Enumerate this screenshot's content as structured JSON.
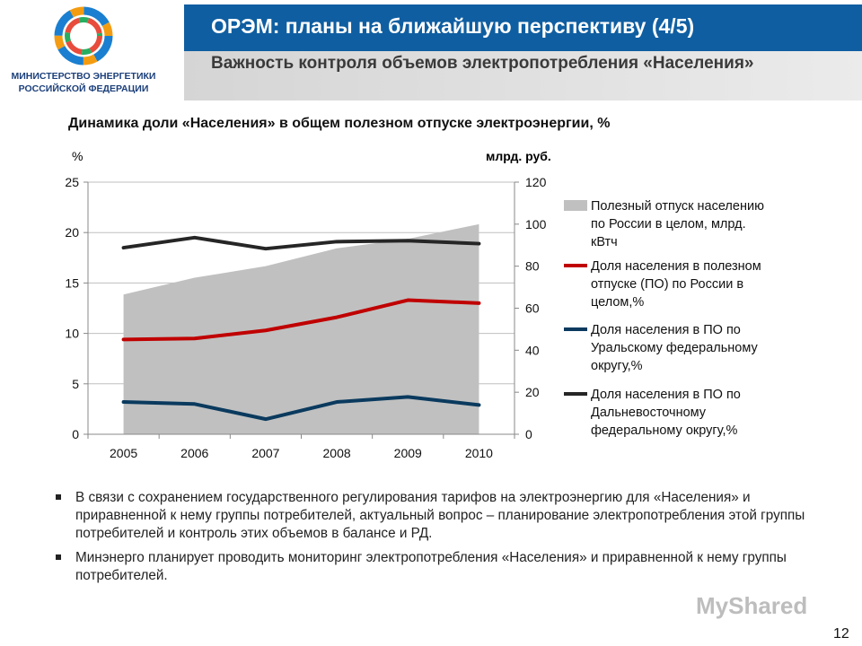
{
  "header": {
    "ministry_name_line1": "МИНИСТЕРСТВО ЭНЕРГЕТИКИ",
    "ministry_name_line2": "РОССИЙСКОЙ ФЕДЕРАЦИИ",
    "title": "ОРЭМ: планы на ближайшую перспективу (4/5)",
    "subtitle": "Важность контроля объемов электропотребления «Населения»",
    "colors": {
      "title_bg": "#0f5ea1",
      "subtitle_bg": "#dcdcdc"
    }
  },
  "chart_data": {
    "type": "line",
    "title": "Динамика доли «Населения» в общем полезном отпуске электроэнергии, %",
    "ylabel_left": "%",
    "ylabel_right": "млрд. руб.",
    "categories": [
      "2005",
      "2006",
      "2007",
      "2008",
      "2009",
      "2010"
    ],
    "ylim_left": [
      0,
      25
    ],
    "yticks_left": [
      "0",
      "5",
      "10",
      "15",
      "20",
      "25"
    ],
    "ylim_right": [
      0,
      120
    ],
    "yticks_right": [
      "0",
      "20",
      "40",
      "60",
      "80",
      "100",
      "120"
    ],
    "grid": true,
    "legend_position": "right",
    "area_series": {
      "name": "Полезный отпуск населению по России в целом, млрд. кВтч",
      "axis": "right",
      "color": "#c0c0c0",
      "values": [
        66.5,
        74.5,
        80,
        88.5,
        93,
        100
      ]
    },
    "series": [
      {
        "name": "Доля населения в полезном отпуске (ПО) по России в целом,%",
        "axis": "left",
        "color": "#c00000",
        "values": [
          9.4,
          9.5,
          10.3,
          11.6,
          13.3,
          13.0
        ]
      },
      {
        "name": "Доля населения в ПО по Уральскому федеральному округу,%",
        "axis": "left",
        "color": "#0a3a5e",
        "values": [
          3.2,
          3.0,
          1.5,
          3.2,
          3.7,
          2.9
        ]
      },
      {
        "name": "Доля населения в ПО по Дальневосточному федеральному округу,%",
        "axis": "left",
        "color": "#262626",
        "values": [
          18.5,
          19.5,
          18.4,
          19.1,
          19.2,
          18.9
        ]
      }
    ]
  },
  "legend": {
    "items": [
      {
        "line1": "Полезный отпуск населению",
        "line2": "по России в целом, млрд.",
        "line3": "кВтч"
      },
      {
        "line1": "Доля населения в полезном",
        "line2": "отпуске (ПО) по России в",
        "line3": "целом,%"
      },
      {
        "line1": "Доля населения в ПО по",
        "line2": "Уральскому федеральному",
        "line3": "округу,%"
      },
      {
        "line1": "Доля населения в ПО по",
        "line2": "Дальневосточному",
        "line3": "федеральному округу,%"
      }
    ]
  },
  "bullets": [
    "В связи с сохранением государственного регулирования тарифов на электроэнергию для «Населения» и приравненной к нему группы потребителей, актуальный вопрос – планирование электропотребления этой группы потребителей и контроль этих объемов в балансе и РД.",
    "Минэнерго планирует проводить мониторинг электропотребления «Населения» и приравненной к нему группы потребителей."
  ],
  "footer": {
    "page_number": "12",
    "watermark": "MyShared"
  }
}
